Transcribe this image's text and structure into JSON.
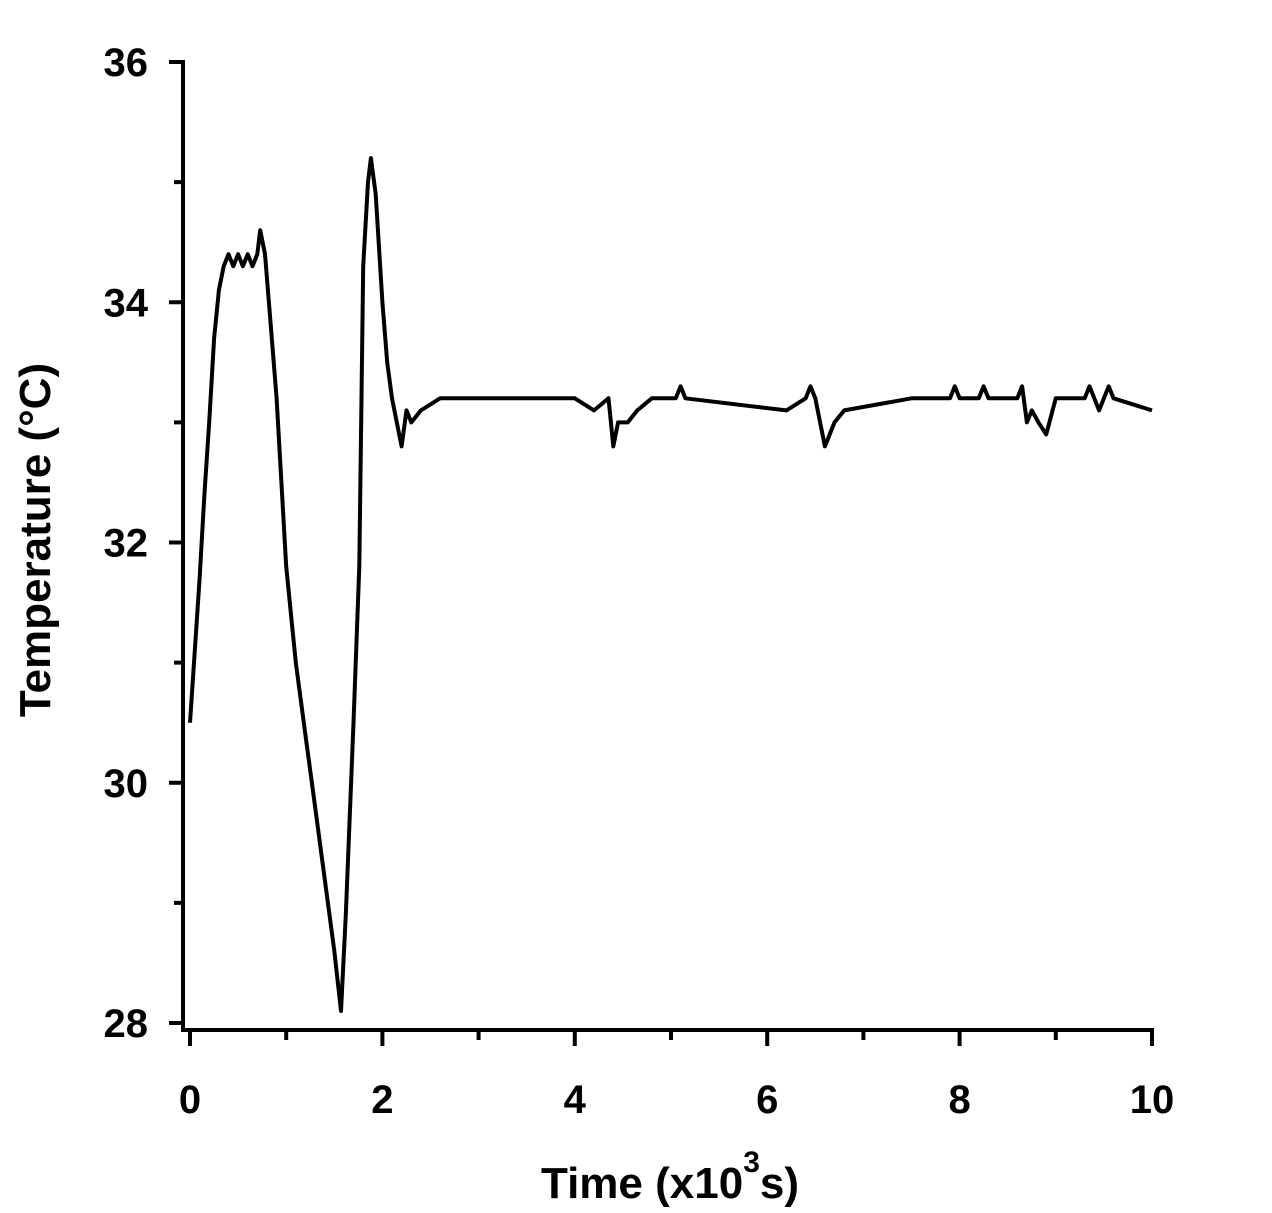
{
  "chart_data": {
    "type": "line",
    "title": "",
    "xlabel": "Time (x10",
    "xlabel_sup": "3",
    "xlabel_suffix": "s)",
    "ylabel": "Temperature (°C)",
    "xlim": [
      0,
      10
    ],
    "ylim": [
      28,
      36
    ],
    "x_ticks": [
      "0",
      "2",
      "4",
      "6",
      "8",
      "10"
    ],
    "y_ticks": [
      "28",
      "30",
      "32",
      "34",
      "36"
    ],
    "grid": false,
    "color": "#000000",
    "series": [
      {
        "name": "Temperature",
        "x": [
          0,
          0.05,
          0.1,
          0.15,
          0.2,
          0.25,
          0.3,
          0.35,
          0.4,
          0.45,
          0.5,
          0.55,
          0.6,
          0.65,
          0.7,
          0.73,
          0.78,
          0.82,
          0.9,
          1.0,
          1.1,
          1.2,
          1.3,
          1.4,
          1.5,
          1.57,
          1.62,
          1.7,
          1.76,
          1.8,
          1.85,
          1.88,
          1.93,
          2.0,
          2.05,
          2.1,
          2.15,
          2.2,
          2.25,
          2.3,
          2.4,
          2.6,
          3.0,
          3.5,
          4.0,
          4.2,
          4.35,
          4.4,
          4.45,
          4.55,
          4.65,
          4.8,
          5.05,
          5.1,
          5.15,
          6.2,
          6.4,
          6.45,
          6.5,
          6.55,
          6.6,
          6.7,
          6.8,
          7.5,
          7.9,
          7.95,
          8.0,
          8.2,
          8.25,
          8.3,
          8.6,
          8.65,
          8.7,
          8.75,
          8.82,
          8.9,
          9.0,
          9.3,
          9.35,
          9.45,
          9.55,
          9.6,
          10.0
        ],
        "y": [
          30.5,
          31.1,
          31.7,
          32.4,
          33.0,
          33.7,
          34.1,
          34.3,
          34.4,
          34.3,
          34.4,
          34.3,
          34.4,
          34.3,
          34.4,
          34.6,
          34.4,
          34.0,
          33.2,
          31.8,
          31.0,
          30.4,
          29.8,
          29.2,
          28.6,
          28.1,
          28.9,
          30.5,
          31.8,
          34.3,
          35.0,
          35.2,
          34.9,
          34.0,
          33.5,
          33.2,
          33.0,
          32.8,
          33.1,
          33.0,
          33.1,
          33.2,
          33.2,
          33.2,
          33.2,
          33.1,
          33.2,
          32.8,
          33.0,
          33.0,
          33.1,
          33.2,
          33.2,
          33.3,
          33.2,
          33.1,
          33.2,
          33.3,
          33.2,
          33.0,
          32.8,
          33.0,
          33.1,
          33.2,
          33.2,
          33.3,
          33.2,
          33.2,
          33.3,
          33.2,
          33.2,
          33.3,
          33.0,
          33.1,
          33.0,
          32.9,
          33.2,
          33.2,
          33.3,
          33.1,
          33.3,
          33.2,
          33.1
        ]
      }
    ]
  }
}
